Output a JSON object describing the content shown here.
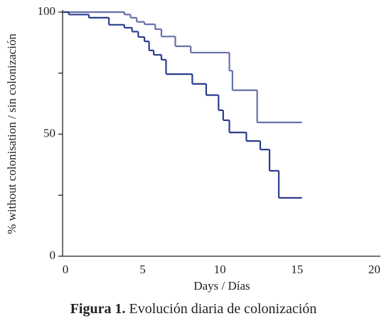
{
  "chart_data": {
    "type": "step",
    "xlabel": "Days / Días",
    "ylabel": "% without colonisation / sin colonización",
    "caption_label": "Figura 1.",
    "caption_text": "Evolución diaria de colonización",
    "xlim": [
      0,
      20.4
    ],
    "xticks": [
      0,
      5,
      10,
      15,
      20
    ],
    "ylim": [
      0,
      100
    ],
    "yticks": [
      0,
      50,
      100
    ],
    "minor_yticks": [
      25,
      75
    ],
    "series": [
      {
        "color": "#6670a8",
        "x": [
          0,
          4.0,
          4.4,
          4.8,
          5.3,
          6.0,
          6.4,
          7.3,
          8.3,
          10.8,
          11.0,
          12.6,
          15.5
        ],
        "values": [
          100,
          99,
          97.7,
          96,
          95,
          93,
          90,
          86,
          83.4,
          76,
          68,
          54.8,
          54.8
        ]
      },
      {
        "color": "#2a3d8f",
        "x": [
          0,
          0.4,
          1.7,
          3.0,
          4.0,
          4.5,
          4.9,
          5.3,
          5.6,
          5.9,
          6.4,
          6.7,
          8.4,
          9.3,
          10.1,
          10.4,
          10.8,
          11.9,
          12.8,
          13.4,
          14.0,
          15.5
        ],
        "values": [
          100,
          99,
          97.7,
          94.8,
          93.6,
          92,
          89.8,
          88,
          84.3,
          82.5,
          80.5,
          74.6,
          70.6,
          66,
          59.8,
          55.7,
          50.7,
          47.2,
          43.7,
          35,
          23.9,
          23.9
        ]
      }
    ]
  }
}
